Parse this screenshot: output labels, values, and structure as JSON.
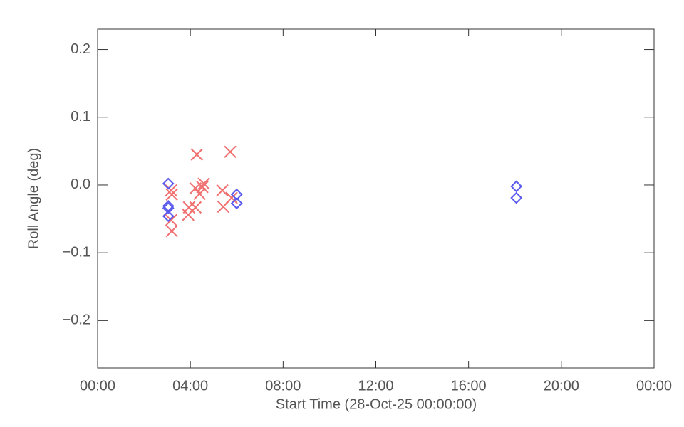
{
  "chart_data": {
    "type": "scatter",
    "x_label": "Start Time (28-Oct-25 00:00:00)",
    "y_label": "Roll Angle (deg)",
    "xlim": [
      0,
      24
    ],
    "ylim": [
      -0.27,
      0.23
    ],
    "xticks": [
      {
        "value": 0,
        "label": "00:00"
      },
      {
        "value": 4,
        "label": "04:00"
      },
      {
        "value": 8,
        "label": "08:00"
      },
      {
        "value": 12,
        "label": "12:00"
      },
      {
        "value": 16,
        "label": "16:00"
      },
      {
        "value": 20,
        "label": "20:00"
      },
      {
        "value": 24,
        "label": "00:00"
      }
    ],
    "yticks": [
      {
        "value": -0.2,
        "label": "−0.2"
      },
      {
        "value": -0.1,
        "label": "−0.1"
      },
      {
        "value": 0,
        "label": "0.0"
      },
      0.1,
      0.2
    ],
    "series": [
      {
        "color": "#f07070",
        "marker": "x",
        "x": [
          3.2,
          3.17,
          3.2,
          3.17,
          3.91,
          3.94,
          4.22,
          4.22,
          4.28,
          4.4,
          4.52,
          4.58,
          5.38,
          5.42,
          5.72,
          5.78
        ],
        "values": [
          -0.068,
          -0.052,
          -0.014,
          -0.008,
          -0.044,
          -0.033,
          -0.033,
          -0.005,
          0.045,
          -0.013,
          -0.003,
          0.002,
          -0.008,
          -0.032,
          0.049,
          -0.019
        ]
      },
      {
        "color": "#5a5aee",
        "marker": "diamond",
        "x": [
          3.05,
          3.05,
          3.05,
          3.05,
          6.0,
          6.0,
          18.06,
          18.06
        ],
        "values": [
          0.002,
          -0.031,
          -0.034,
          -0.046,
          -0.014,
          -0.027,
          -0.002,
          -0.019
        ]
      }
    ]
  }
}
